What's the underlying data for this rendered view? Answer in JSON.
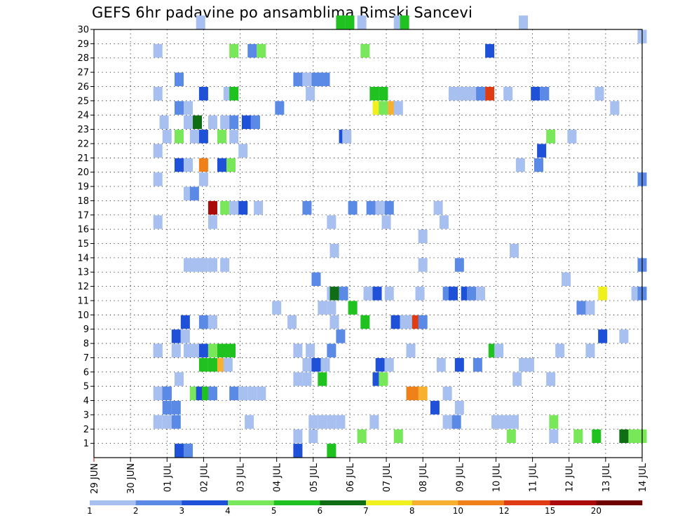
{
  "title": "GEFS 6hr padavine po ansamblima Rimski Sancevi",
  "chart_data": {
    "type": "heatmap",
    "title": "GEFS 6hr padavine po ansamblima Rimski Sancevi",
    "x_tick_labels": [
      "29 JUN",
      "30 JUN",
      "01 JUL",
      "02 JUL",
      "03 JUL",
      "04 JUL",
      "05 JUL",
      "06 JUL",
      "07 JUL",
      "08 JUL",
      "09 JUL",
      "10 JUL",
      "11 JUL",
      "12 JUL",
      "13 JUL",
      "14 JUL"
    ],
    "y_tick_labels": [
      "1",
      "2",
      "3",
      "4",
      "5",
      "6",
      "7",
      "8",
      "9",
      "10",
      "11",
      "12",
      "13",
      "14",
      "15",
      "16",
      "17",
      "18",
      "19",
      "20",
      "21",
      "22",
      "23",
      "24",
      "25",
      "26",
      "27",
      "28",
      "29",
      "30"
    ],
    "xlim_days": [
      0,
      15
    ],
    "ylim_members": [
      0,
      30
    ],
    "grid": true,
    "legend_position": "bottom",
    "legend": {
      "labels": [
        "1",
        "2",
        "3",
        "4",
        "5",
        "6",
        "7",
        "8",
        "10",
        "12",
        "15",
        "20"
      ],
      "colors": [
        "#a8c0f0",
        "#5a8ae6",
        "#1f50d8",
        "#78e85a",
        "#1fc21f",
        "#0f6e14",
        "#f0f01e",
        "#f8b030",
        "#f08018",
        "#e03c14",
        "#aa0a0a",
        "#6e0000"
      ]
    },
    "points": [
      [
        5.58,
        0,
        3
      ],
      [
        6.5,
        0,
        5
      ],
      [
        2.58,
        0,
        4
      ],
      [
        2.33,
        0,
        3
      ],
      [
        2.58,
        0,
        2
      ],
      [
        5.58,
        1,
        1
      ],
      [
        6.0,
        1,
        1
      ],
      [
        7.33,
        1,
        4
      ],
      [
        8.33,
        1,
        4
      ],
      [
        11.42,
        1,
        4
      ],
      [
        12.58,
        1,
        1
      ],
      [
        13.25,
        1,
        4
      ],
      [
        13.75,
        1,
        5
      ],
      [
        14.5,
        1,
        6
      ],
      [
        14.75,
        1,
        4
      ],
      [
        15.0,
        1,
        4
      ],
      [
        1.75,
        2,
        1
      ],
      [
        2.0,
        2,
        1
      ],
      [
        2.25,
        2,
        2
      ],
      [
        4.25,
        2,
        1
      ],
      [
        6.0,
        2,
        1
      ],
      [
        6.25,
        2,
        1
      ],
      [
        6.5,
        2,
        1
      ],
      [
        6.75,
        2,
        1
      ],
      [
        7.67,
        2,
        1
      ],
      [
        9.67,
        2,
        1
      ],
      [
        9.92,
        2,
        2
      ],
      [
        11.0,
        2,
        1
      ],
      [
        11.25,
        2,
        1
      ],
      [
        11.5,
        2,
        1
      ],
      [
        12.58,
        2,
        4
      ],
      [
        2.0,
        3,
        1
      ],
      [
        2.0,
        3,
        2
      ],
      [
        2.25,
        3,
        2
      ],
      [
        9.33,
        3,
        3
      ],
      [
        10.0,
        3,
        1
      ],
      [
        1.75,
        4,
        1
      ],
      [
        2.0,
        4,
        3
      ],
      [
        2.0,
        4,
        2
      ],
      [
        2.75,
        4,
        4
      ],
      [
        2.92,
        4,
        3
      ],
      [
        3.08,
        4,
        5
      ],
      [
        3.25,
        4,
        2
      ],
      [
        3.83,
        4,
        2
      ],
      [
        4.08,
        4,
        1
      ],
      [
        4.33,
        4,
        1
      ],
      [
        4.58,
        4,
        1
      ],
      [
        8.83,
        4,
        9
      ],
      [
        8.67,
        4,
        9
      ],
      [
        9.0,
        4,
        8
      ],
      [
        9.67,
        4,
        1
      ],
      [
        2.33,
        5,
        1
      ],
      [
        5.58,
        5,
        1
      ],
      [
        5.83,
        5,
        1
      ],
      [
        6.25,
        5,
        5
      ],
      [
        7.75,
        5,
        3
      ],
      [
        7.92,
        5,
        4
      ],
      [
        11.58,
        5,
        1
      ],
      [
        12.5,
        5,
        1
      ],
      [
        3.0,
        6,
        5
      ],
      [
        3.25,
        6,
        5
      ],
      [
        3.5,
        6,
        8
      ],
      [
        3.67,
        6,
        1
      ],
      [
        5.83,
        6,
        1
      ],
      [
        6.08,
        6,
        3
      ],
      [
        6.33,
        6,
        1
      ],
      [
        7.83,
        6,
        3
      ],
      [
        8.08,
        6,
        1
      ],
      [
        9.5,
        6,
        1
      ],
      [
        10.0,
        6,
        3
      ],
      [
        10.5,
        6,
        2
      ],
      [
        11.75,
        6,
        1
      ],
      [
        11.92,
        6,
        1
      ],
      [
        1.75,
        7,
        1
      ],
      [
        1.75,
        7,
        1
      ],
      [
        2.25,
        7,
        1
      ],
      [
        2.75,
        7,
        1
      ],
      [
        2.58,
        7,
        1
      ],
      [
        3.0,
        7,
        3
      ],
      [
        3.25,
        7,
        4
      ],
      [
        3.5,
        7,
        5
      ],
      [
        3.75,
        7,
        5
      ],
      [
        5.58,
        7,
        1
      ],
      [
        5.92,
        7,
        1
      ],
      [
        6.5,
        7,
        2
      ],
      [
        8.67,
        7,
        1
      ],
      [
        10.92,
        7,
        5
      ],
      [
        11.08,
        7,
        1
      ],
      [
        12.75,
        7,
        1
      ],
      [
        13.58,
        7,
        1
      ],
      [
        2.25,
        8,
        3
      ],
      [
        2.5,
        8,
        1
      ],
      [
        6.75,
        8,
        2
      ],
      [
        13.92,
        8,
        3
      ],
      [
        14.5,
        8,
        1
      ],
      [
        2.5,
        9,
        3
      ],
      [
        3.0,
        9,
        2
      ],
      [
        3.25,
        9,
        1
      ],
      [
        5.42,
        9,
        1
      ],
      [
        6.58,
        9,
        1
      ],
      [
        7.42,
        9,
        5
      ],
      [
        8.25,
        9,
        3
      ],
      [
        8.5,
        9,
        1
      ],
      [
        8.67,
        9,
        1
      ],
      [
        8.83,
        9,
        10
      ],
      [
        9.0,
        9,
        2
      ],
      [
        5.0,
        10,
        1
      ],
      [
        6.25,
        10,
        1
      ],
      [
        6.5,
        10,
        1
      ],
      [
        7.08,
        10,
        5
      ],
      [
        13.33,
        10,
        2
      ],
      [
        13.58,
        10,
        1
      ],
      [
        6.5,
        11,
        1
      ],
      [
        6.58,
        11,
        6
      ],
      [
        6.83,
        11,
        2
      ],
      [
        7.5,
        11,
        1
      ],
      [
        7.75,
        11,
        3
      ],
      [
        8.08,
        11,
        1
      ],
      [
        8.92,
        11,
        1
      ],
      [
        9.67,
        11,
        2
      ],
      [
        9.83,
        11,
        3
      ],
      [
        10.17,
        11,
        3
      ],
      [
        10.33,
        11,
        2
      ],
      [
        10.58,
        11,
        1
      ],
      [
        13.92,
        11,
        7
      ],
      [
        14.83,
        11,
        1
      ],
      [
        15.0,
        11,
        2
      ],
      [
        6.08,
        12,
        2
      ],
      [
        12.92,
        12,
        1
      ],
      [
        2.58,
        13,
        1
      ],
      [
        2.83,
        13,
        1
      ],
      [
        3.0,
        13,
        1
      ],
      [
        3.25,
        13,
        1
      ],
      [
        3.58,
        13,
        1
      ],
      [
        9.0,
        13,
        1
      ],
      [
        10.0,
        13,
        2
      ],
      [
        15.0,
        13,
        2
      ],
      [
        6.58,
        14,
        1
      ],
      [
        11.5,
        14,
        1
      ],
      [
        9.0,
        15,
        1
      ],
      [
        1.75,
        16,
        1
      ],
      [
        3.25,
        16,
        1
      ],
      [
        6.5,
        16,
        1
      ],
      [
        8.0,
        16,
        1
      ],
      [
        9.58,
        16,
        1
      ],
      [
        3.25,
        17,
        11
      ],
      [
        3.58,
        17,
        4
      ],
      [
        3.83,
        17,
        1
      ],
      [
        4.08,
        17,
        3
      ],
      [
        4.5,
        17,
        1
      ],
      [
        5.83,
        17,
        2
      ],
      [
        7.08,
        17,
        2
      ],
      [
        7.58,
        17,
        2
      ],
      [
        7.83,
        17,
        1
      ],
      [
        8.08,
        17,
        2
      ],
      [
        9.42,
        17,
        1
      ],
      [
        2.58,
        18,
        1
      ],
      [
        2.75,
        18,
        2
      ],
      [
        1.75,
        19,
        1
      ],
      [
        3.0,
        19,
        1
      ],
      [
        15.0,
        19,
        2
      ],
      [
        2.33,
        20,
        3
      ],
      [
        2.58,
        20,
        1
      ],
      [
        3.0,
        20,
        9
      ],
      [
        3.5,
        20,
        3
      ],
      [
        3.75,
        20,
        4
      ],
      [
        11.67,
        20,
        1
      ],
      [
        12.17,
        20,
        2
      ],
      [
        1.75,
        21,
        1
      ],
      [
        4.08,
        21,
        1
      ],
      [
        12.25,
        21,
        3
      ],
      [
        2.0,
        22,
        1
      ],
      [
        2.33,
        22,
        4
      ],
      [
        2.75,
        22,
        1
      ],
      [
        3.0,
        22,
        3
      ],
      [
        3.5,
        22,
        4
      ],
      [
        3.83,
        22,
        1
      ],
      [
        6.83,
        22,
        3
      ],
      [
        6.92,
        22,
        1
      ],
      [
        12.5,
        22,
        4
      ],
      [
        13.08,
        22,
        1
      ],
      [
        1.92,
        23,
        1
      ],
      [
        2.58,
        23,
        1
      ],
      [
        2.83,
        23,
        6
      ],
      [
        3.25,
        23,
        1
      ],
      [
        3.58,
        23,
        1
      ],
      [
        3.83,
        23,
        2
      ],
      [
        4.17,
        23,
        3
      ],
      [
        4.42,
        23,
        2
      ],
      [
        2.33,
        24,
        2
      ],
      [
        2.58,
        24,
        1
      ],
      [
        5.08,
        24,
        2
      ],
      [
        7.75,
        24,
        7
      ],
      [
        7.92,
        24,
        4
      ],
      [
        8.17,
        24,
        8
      ],
      [
        8.33,
        24,
        1
      ],
      [
        14.25,
        24,
        1
      ],
      [
        1.75,
        25,
        1
      ],
      [
        3.0,
        25,
        3
      ],
      [
        3.67,
        25,
        1
      ],
      [
        3.83,
        25,
        5
      ],
      [
        5.92,
        25,
        13
      ],
      [
        7.67,
        25,
        5
      ],
      [
        7.92,
        25,
        5
      ],
      [
        9.83,
        25,
        1
      ],
      [
        10.08,
        25,
        1
      ],
      [
        10.33,
        25,
        1
      ],
      [
        10.58,
        25,
        2
      ],
      [
        10.83,
        25,
        10
      ],
      [
        11.33,
        25,
        1
      ],
      [
        12.08,
        25,
        3
      ],
      [
        12.33,
        25,
        2
      ],
      [
        13.83,
        25,
        1
      ],
      [
        2.33,
        26,
        2
      ],
      [
        5.58,
        26,
        2
      ],
      [
        5.83,
        26,
        13
      ],
      [
        6.08,
        26,
        2
      ],
      [
        6.33,
        26,
        2
      ],
      [
        1.75,
        28,
        1
      ],
      [
        3.83,
        28,
        4
      ],
      [
        4.33,
        28,
        2
      ],
      [
        4.58,
        28,
        4
      ],
      [
        7.42,
        28,
        4
      ],
      [
        10.83,
        28,
        3
      ],
      [
        15.0,
        29,
        1
      ],
      [
        2.92,
        30,
        1
      ],
      [
        6.75,
        30,
        5
      ],
      [
        7.0,
        30,
        5
      ],
      [
        7.33,
        30,
        1
      ],
      [
        8.33,
        30,
        1
      ],
      [
        8.5,
        30,
        5
      ],
      [
        11.75,
        30,
        1
      ]
    ]
  }
}
